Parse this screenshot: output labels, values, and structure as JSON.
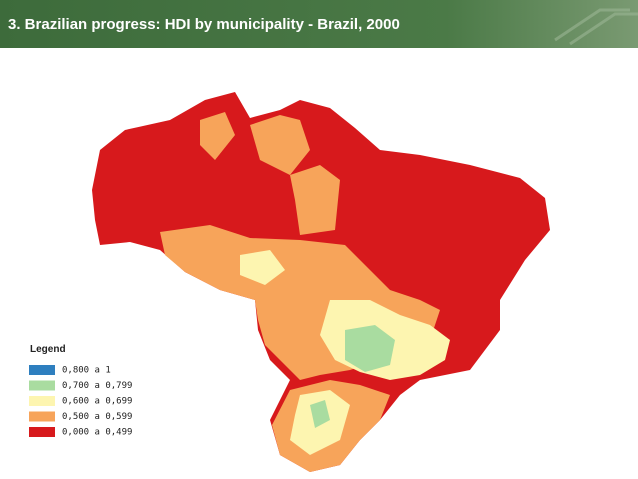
{
  "header": {
    "title": "3. Brazilian progress: HDI by municipality - Brazil, 2000"
  },
  "legend": {
    "title": "Legend",
    "items": [
      {
        "label": "0,800 a 1",
        "color": "#2e7fbf"
      },
      {
        "label": "0,700 a 0,799",
        "color": "#a9dca0"
      },
      {
        "label": "0,600 a 0,699",
        "color": "#fdf5b0"
      },
      {
        "label": "0,500 a 0,599",
        "color": "#f7a45a"
      },
      {
        "label": "0,000 a 0,499",
        "color": "#d7191c"
      }
    ]
  }
}
